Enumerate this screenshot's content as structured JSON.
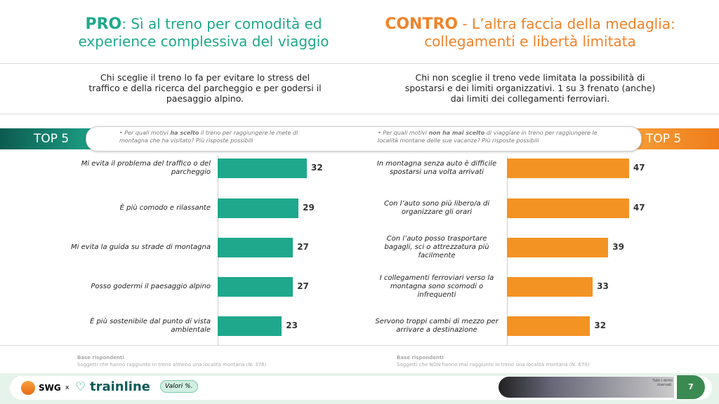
{
  "pro_header": {
    "keyword": "PRO",
    "text": ": Sì al treno per comodità ed experience complessiva del viaggio"
  },
  "contro_header": {
    "keyword": "CONTRO",
    "text": " - L’altra faccia della medaglia: collegamenti e libertà limitata"
  },
  "pro_description": "Chi sceglie il treno lo fa per evitare lo stress del traffico e della ricerca del parcheggio e per godersi il paesaggio alpino.",
  "contro_description": "Chi non sceglie il treno vede limitata la possibilità di spostarsi e dei limiti organizzativi. 1 su 3 frenato (anche) dai limiti dei collegamenti ferroviari.",
  "chart_data": [
    {
      "type": "bar",
      "badge": "TOP 5",
      "question": [
        "Per quali motivi ",
        "ha scelto",
        " il treno per raggiungere le mete di montagna che ha visitato? Più risposte possibili"
      ],
      "categories": [
        "Mi evita il problema del traffico o del parcheggio",
        "È più comodo e rilassante",
        "Mi evita la guida su strade di montagna",
        "Posso godermi il paesaggio alpino",
        "È più sostenibile dal punto di vista ambientale"
      ],
      "values": [
        32,
        29,
        27,
        27,
        23
      ],
      "color": "#1fa88c",
      "base_title": "Base rispondenti",
      "base_text": "Soggetti che hanno raggiunto in treno almeno una località montana (N: 376)"
    },
    {
      "type": "bar",
      "badge": "TOP 5",
      "question": [
        "Per quali motivi ",
        "non ha mai scelto",
        " di viaggiare in treno per raggiungere le località montane delle sue vacanze? Più risposte possibili"
      ],
      "categories": [
        "In montagna senza auto è difficile spostarsi una volta arrivati",
        "Con l’auto sono più libero/a di organizzare gli orari",
        "Con l’auto posso trasportare bagagli, sci o attrezzatura più facilmente",
        "I collegamenti ferroviari verso la montagna sono scomodi o infrequenti",
        "Servono troppi cambi di mezzo per arrivare a destinazione"
      ],
      "values": [
        47,
        47,
        39,
        33,
        32
      ],
      "color": "#f39324",
      "base_title": "Base rispondenti",
      "base_text": "Soggetti che NON hanno mai raggiunto in treno una località montana (N: 670)"
    }
  ],
  "footer": {
    "swg": "SWG",
    "x": "x",
    "trainline": "trainline",
    "values_note": "Valori %.",
    "rights": "Tutti i diritti riservati.",
    "page": "7"
  }
}
